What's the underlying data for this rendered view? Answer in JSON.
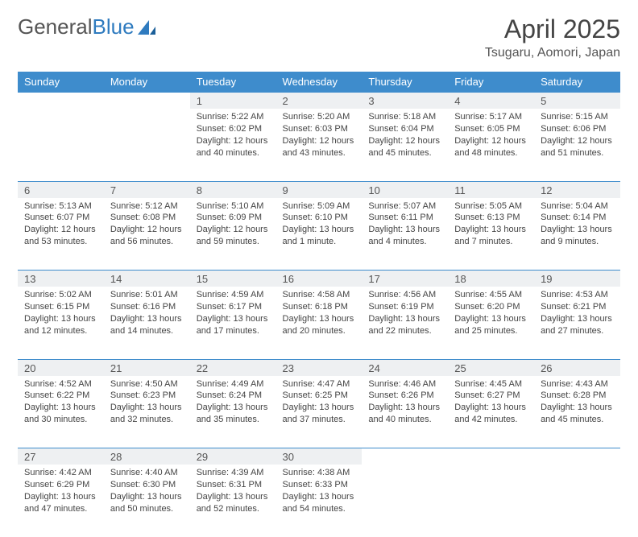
{
  "brand": {
    "word1": "General",
    "word2": "Blue"
  },
  "title": "April 2025",
  "location": "Tsugaru, Aomori, Japan",
  "colors": {
    "header_bg": "#3e8ccc",
    "header_text": "#ffffff",
    "daynum_bg": "#eef0f2",
    "border": "#3e8ccc",
    "body_text": "#444444"
  },
  "weekdays": [
    "Sunday",
    "Monday",
    "Tuesday",
    "Wednesday",
    "Thursday",
    "Friday",
    "Saturday"
  ],
  "weeks": [
    [
      null,
      null,
      {
        "n": "1",
        "sr": "5:22 AM",
        "ss": "6:02 PM",
        "dl": "12 hours and 40 minutes."
      },
      {
        "n": "2",
        "sr": "5:20 AM",
        "ss": "6:03 PM",
        "dl": "12 hours and 43 minutes."
      },
      {
        "n": "3",
        "sr": "5:18 AM",
        "ss": "6:04 PM",
        "dl": "12 hours and 45 minutes."
      },
      {
        "n": "4",
        "sr": "5:17 AM",
        "ss": "6:05 PM",
        "dl": "12 hours and 48 minutes."
      },
      {
        "n": "5",
        "sr": "5:15 AM",
        "ss": "6:06 PM",
        "dl": "12 hours and 51 minutes."
      }
    ],
    [
      {
        "n": "6",
        "sr": "5:13 AM",
        "ss": "6:07 PM",
        "dl": "12 hours and 53 minutes."
      },
      {
        "n": "7",
        "sr": "5:12 AM",
        "ss": "6:08 PM",
        "dl": "12 hours and 56 minutes."
      },
      {
        "n": "8",
        "sr": "5:10 AM",
        "ss": "6:09 PM",
        "dl": "12 hours and 59 minutes."
      },
      {
        "n": "9",
        "sr": "5:09 AM",
        "ss": "6:10 PM",
        "dl": "13 hours and 1 minute."
      },
      {
        "n": "10",
        "sr": "5:07 AM",
        "ss": "6:11 PM",
        "dl": "13 hours and 4 minutes."
      },
      {
        "n": "11",
        "sr": "5:05 AM",
        "ss": "6:13 PM",
        "dl": "13 hours and 7 minutes."
      },
      {
        "n": "12",
        "sr": "5:04 AM",
        "ss": "6:14 PM",
        "dl": "13 hours and 9 minutes."
      }
    ],
    [
      {
        "n": "13",
        "sr": "5:02 AM",
        "ss": "6:15 PM",
        "dl": "13 hours and 12 minutes."
      },
      {
        "n": "14",
        "sr": "5:01 AM",
        "ss": "6:16 PM",
        "dl": "13 hours and 14 minutes."
      },
      {
        "n": "15",
        "sr": "4:59 AM",
        "ss": "6:17 PM",
        "dl": "13 hours and 17 minutes."
      },
      {
        "n": "16",
        "sr": "4:58 AM",
        "ss": "6:18 PM",
        "dl": "13 hours and 20 minutes."
      },
      {
        "n": "17",
        "sr": "4:56 AM",
        "ss": "6:19 PM",
        "dl": "13 hours and 22 minutes."
      },
      {
        "n": "18",
        "sr": "4:55 AM",
        "ss": "6:20 PM",
        "dl": "13 hours and 25 minutes."
      },
      {
        "n": "19",
        "sr": "4:53 AM",
        "ss": "6:21 PM",
        "dl": "13 hours and 27 minutes."
      }
    ],
    [
      {
        "n": "20",
        "sr": "4:52 AM",
        "ss": "6:22 PM",
        "dl": "13 hours and 30 minutes."
      },
      {
        "n": "21",
        "sr": "4:50 AM",
        "ss": "6:23 PM",
        "dl": "13 hours and 32 minutes."
      },
      {
        "n": "22",
        "sr": "4:49 AM",
        "ss": "6:24 PM",
        "dl": "13 hours and 35 minutes."
      },
      {
        "n": "23",
        "sr": "4:47 AM",
        "ss": "6:25 PM",
        "dl": "13 hours and 37 minutes."
      },
      {
        "n": "24",
        "sr": "4:46 AM",
        "ss": "6:26 PM",
        "dl": "13 hours and 40 minutes."
      },
      {
        "n": "25",
        "sr": "4:45 AM",
        "ss": "6:27 PM",
        "dl": "13 hours and 42 minutes."
      },
      {
        "n": "26",
        "sr": "4:43 AM",
        "ss": "6:28 PM",
        "dl": "13 hours and 45 minutes."
      }
    ],
    [
      {
        "n": "27",
        "sr": "4:42 AM",
        "ss": "6:29 PM",
        "dl": "13 hours and 47 minutes."
      },
      {
        "n": "28",
        "sr": "4:40 AM",
        "ss": "6:30 PM",
        "dl": "13 hours and 50 minutes."
      },
      {
        "n": "29",
        "sr": "4:39 AM",
        "ss": "6:31 PM",
        "dl": "13 hours and 52 minutes."
      },
      {
        "n": "30",
        "sr": "4:38 AM",
        "ss": "6:33 PM",
        "dl": "13 hours and 54 minutes."
      },
      null,
      null,
      null
    ]
  ],
  "labels": {
    "sunrise": "Sunrise:",
    "sunset": "Sunset:",
    "daylight": "Daylight:"
  }
}
